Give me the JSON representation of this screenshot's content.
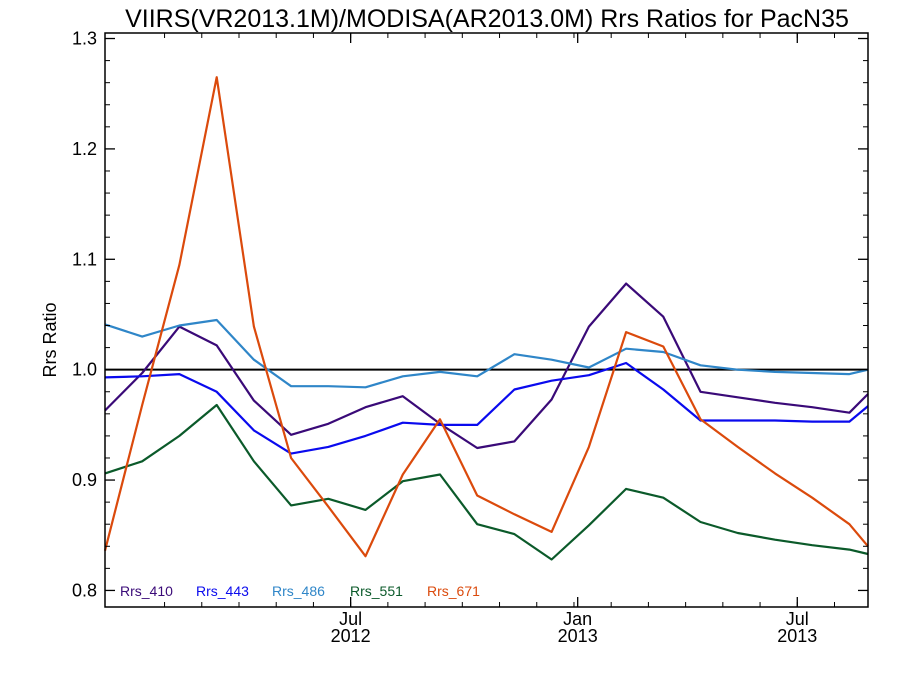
{
  "chart_data": {
    "type": "line",
    "title": "VIIRS(VR2013.1M)/MODISA(AR2013.0M)  Rrs Ratios for PacN35",
    "xlabel": "",
    "ylabel": "Rrs Ratio",
    "ylim": [
      0.785,
      1.305
    ],
    "xlim": [
      0,
      20.5
    ],
    "x_tick_positions": [
      6.6,
      12.7,
      18.6
    ],
    "x_ticks": [
      {
        "top": "Jul",
        "bottom": "2012"
      },
      {
        "top": "Jan",
        "bottom": "2013"
      },
      {
        "top": "Jul",
        "bottom": "2013"
      }
    ],
    "y_ticks": [
      "0.8",
      "0.9",
      "1.0",
      "1.1",
      "1.2",
      "1.3"
    ],
    "y_tick_values": [
      0.8,
      0.9,
      1.0,
      1.1,
      1.2,
      1.3
    ],
    "reference_line": {
      "y": 1.0,
      "color": "#000000"
    },
    "x": [
      0,
      1,
      2,
      3,
      4,
      5,
      6,
      7,
      8,
      9,
      10,
      11,
      12,
      13,
      14,
      15,
      16,
      17,
      18,
      19,
      20,
      20.5
    ],
    "series": [
      {
        "name": "Rrs_410",
        "color": "#3a0a78",
        "values": [
          0.963,
          0.997,
          1.039,
          1.022,
          0.972,
          0.941,
          0.951,
          0.966,
          0.976,
          0.951,
          0.929,
          0.935,
          0.973,
          1.039,
          1.078,
          1.048,
          0.98,
          0.975,
          0.97,
          0.966,
          0.961,
          0.978
        ]
      },
      {
        "name": "Rrs_443",
        "color": "#0a0aee",
        "values": [
          0.993,
          0.994,
          0.996,
          0.98,
          0.945,
          0.924,
          0.93,
          0.94,
          0.952,
          0.95,
          0.95,
          0.982,
          0.99,
          0.995,
          1.006,
          0.982,
          0.954,
          0.954,
          0.954,
          0.953,
          0.953,
          0.967
        ]
      },
      {
        "name": "Rrs_486",
        "color": "#2f86c8",
        "values": [
          1.041,
          1.03,
          1.04,
          1.045,
          1.009,
          0.985,
          0.985,
          0.984,
          0.994,
          0.998,
          0.994,
          1.014,
          1.009,
          1.002,
          1.019,
          1.016,
          1.004,
          1.0,
          0.998,
          0.997,
          0.996,
          1.0
        ]
      },
      {
        "name": "Rrs_551",
        "color": "#0b5a2a",
        "values": [
          0.906,
          0.917,
          0.94,
          0.968,
          0.917,
          0.877,
          0.883,
          0.873,
          0.899,
          0.905,
          0.86,
          0.851,
          0.828,
          0.859,
          0.892,
          0.884,
          0.862,
          0.852,
          0.846,
          0.841,
          0.837,
          0.833
        ]
      },
      {
        "name": "Rrs_671",
        "color": "#db4a0c",
        "values": [
          0.836,
          0.968,
          1.095,
          1.265,
          1.039,
          0.92,
          0.876,
          0.831,
          0.905,
          0.955,
          0.886,
          0.869,
          0.853,
          0.93,
          1.034,
          1.021,
          0.955,
          0.93,
          0.906,
          0.884,
          0.86,
          0.84
        ]
      }
    ],
    "grid": false,
    "legend_position": "bottom-left"
  }
}
